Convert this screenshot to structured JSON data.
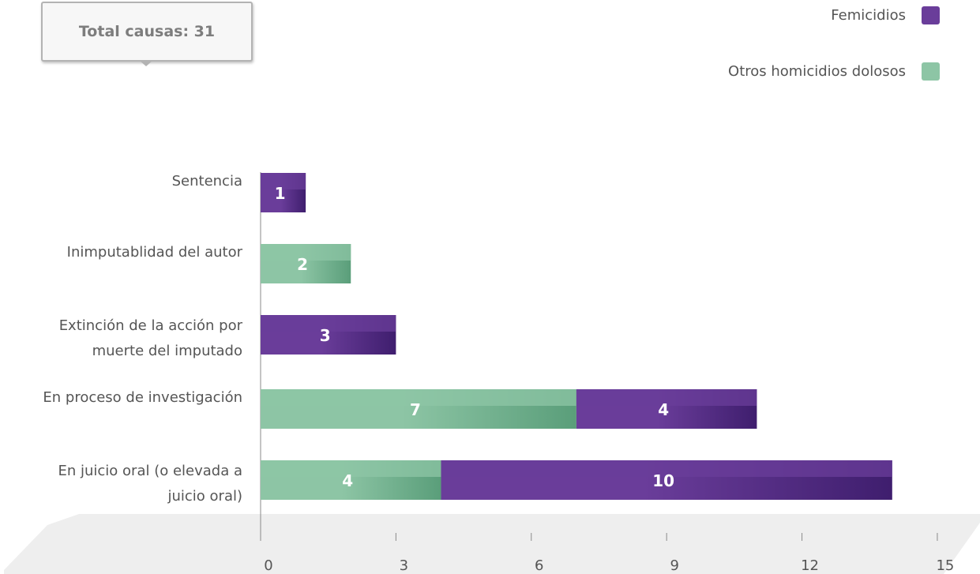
{
  "total_label": "Total causas: 31",
  "legend": [
    {
      "name": "Femicidios",
      "color": "#6a3d9a"
    },
    {
      "name": "Otros homicidios dolosos",
      "color": "#8dc5a5"
    }
  ],
  "colors": {
    "femicidios": "#6a3d9a",
    "femicidios_dark": "#3f1e6e",
    "otros": "#8dc5a5",
    "otros_dark": "#5a9e7a"
  },
  "chart_data": {
    "type": "bar",
    "orientation": "horizontal",
    "stacked": true,
    "categories": [
      "Sentencia",
      "Inimputablidad del autor",
      "Extinción de la acción por muerte del imputado",
      "En proceso de investigación",
      "En juicio oral (o elevada a juicio oral)"
    ],
    "series": [
      {
        "name": "Otros homicidios dolosos",
        "values": [
          0,
          2,
          0,
          7,
          4
        ]
      },
      {
        "name": "Femicidios",
        "values": [
          1,
          0,
          3,
          4,
          10
        ]
      }
    ],
    "xlim": [
      0,
      15
    ],
    "xticks": [
      0,
      3,
      6,
      9,
      12,
      15
    ],
    "grid": false,
    "legend_position": "top-right"
  }
}
